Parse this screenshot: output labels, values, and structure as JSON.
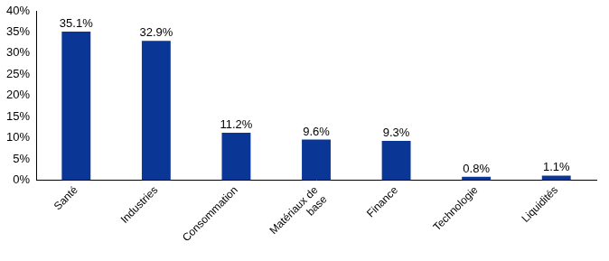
{
  "chart_data": {
    "type": "bar",
    "categories": [
      "Santé",
      "Industries",
      "Consommation",
      "Matériaux de base",
      "Finance",
      "Technologie",
      "Liquidités"
    ],
    "values": [
      35.1,
      32.9,
      11.2,
      9.6,
      9.3,
      0.8,
      1.1
    ],
    "value_labels": [
      "35.1%",
      "32.9%",
      "11.2%",
      "9.6%",
      "9.3%",
      "0.8%",
      "1.1%"
    ],
    "data_labels": true,
    "color": "#0a3696",
    "ylim": [
      0,
      40
    ],
    "yticks": [
      {
        "value": 0,
        "label": "0%"
      },
      {
        "value": 5,
        "label": "5%"
      },
      {
        "value": 10,
        "label": "10%"
      },
      {
        "value": 15,
        "label": "15%"
      },
      {
        "value": 20,
        "label": "20%"
      },
      {
        "value": 25,
        "label": "25%"
      },
      {
        "value": 30,
        "label": "30%"
      },
      {
        "value": 35,
        "label": "35%"
      },
      {
        "value": 40,
        "label": "40%"
      }
    ],
    "grid": false
  }
}
